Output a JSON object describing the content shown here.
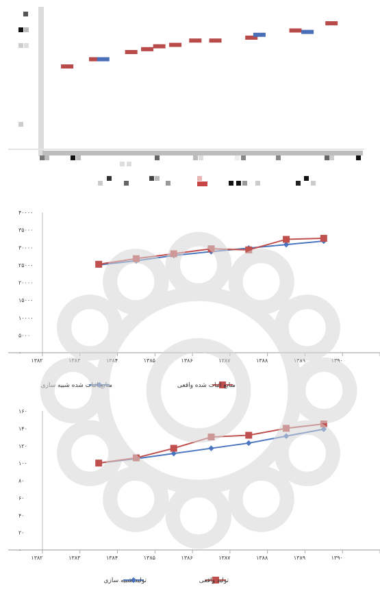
{
  "chart_data": [
    {
      "type": "bar",
      "description_note": "",
      "bars": [
        {
          "x": 1382.6,
          "value": 0.6,
          "color": "#b84a4a"
        },
        {
          "x": 1383.3,
          "value": 0.65,
          "color": "#b84a4a"
        },
        {
          "x": 1383.5,
          "value": 0.65,
          "color": "#4a6fb8"
        },
        {
          "x": 1384.2,
          "value": 0.7,
          "color": "#b84a4a"
        },
        {
          "x": 1384.6,
          "value": 0.72,
          "color": "#b84a4a"
        },
        {
          "x": 1384.9,
          "value": 0.74,
          "color": "#b84a4a"
        },
        {
          "x": 1385.3,
          "value": 0.75,
          "color": "#b84a4a"
        },
        {
          "x": 1385.8,
          "value": 0.78,
          "color": "#b84a4a"
        },
        {
          "x": 1386.3,
          "value": 0.78,
          "color": "#b84a4a"
        },
        {
          "x": 1387.2,
          "value": 0.8,
          "color": "#b84a4a"
        },
        {
          "x": 1387.4,
          "value": 0.82,
          "color": "#4a6fb8"
        },
        {
          "x": 1388.3,
          "value": 0.85,
          "color": "#b84a4a"
        },
        {
          "x": 1388.6,
          "value": 0.84,
          "color": "#4a6fb8"
        },
        {
          "x": 1389.2,
          "value": 0.9,
          "color": "#b84a4a"
        }
      ]
    },
    {
      "type": "line",
      "x": [
        "۱۳۸۲",
        "۱۳۸۳",
        "۱۳۸۴",
        "۱۳۸۵",
        "۱۳۸۶",
        "۱۳۸۷",
        "۱۳۸۸",
        "۱۳۸۹",
        "۱۳۹۰"
      ],
      "yticks": [
        "۴۰۰۰۰",
        "۳۵۰۰۰",
        "۳۰۰۰۰",
        "۲۵۰۰۰",
        "۲۰۰۰۰",
        "۱۵۰۰۰",
        "۱۰۰۰۰",
        "۵۰۰۰",
        "۰"
      ],
      "ylim": [
        0,
        40000
      ],
      "series": [
        {
          "name": "منابع اثبات شده شبیه سازی",
          "color": "#4a76c0",
          "marker": "diamond",
          "values": [
            null,
            25000,
            26200,
            27700,
            28800,
            29800,
            30800,
            31800,
            null
          ]
        },
        {
          "name": "منابع اثبات شده واقعی",
          "color": "#c0504d",
          "marker": "square",
          "values": [
            null,
            25200,
            26800,
            28200,
            29600,
            29300,
            32300,
            32600,
            null
          ]
        }
      ]
    },
    {
      "type": "line",
      "x": [
        "۱۳۸۲",
        "۱۳۸۳",
        "۱۳۸۴",
        "۱۳۸۵",
        "۱۳۸۶",
        "۱۳۸۷",
        "۱۳۸۸",
        "۱۳۸۹",
        "۱۳۹۰"
      ],
      "yticks": [
        "۱۶۰",
        "۱۴۰",
        "۱۲۰",
        "۱۰۰",
        "۸۰",
        "۶۰",
        "۴۰",
        "۲۰",
        "۰"
      ],
      "ylim": [
        0,
        160
      ],
      "series": [
        {
          "name": "تولید شبیه سازی",
          "color": "#4a76c0",
          "marker": "diamond",
          "values": [
            null,
            100,
            105,
            111,
            117,
            123,
            131,
            139,
            null
          ]
        },
        {
          "name": "تولید واقعی",
          "color": "#c0504d",
          "marker": "square",
          "values": [
            null,
            100,
            106,
            117,
            130,
            132,
            140,
            145,
            null
          ]
        }
      ]
    }
  ]
}
